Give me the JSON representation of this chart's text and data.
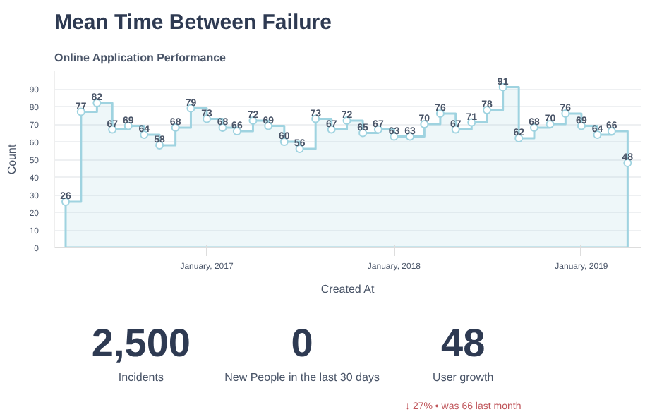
{
  "chart_data": [
    {
      "type": "area",
      "title": "Mean Time Between Failure",
      "subtitle": "Online Application Performance",
      "xlabel": "Created At",
      "ylabel": "Count",
      "x": [
        "2016-04",
        "2016-05",
        "2016-06",
        "2016-07",
        "2016-08",
        "2016-09",
        "2016-10",
        "2016-11",
        "2016-12",
        "2017-01",
        "2017-02",
        "2017-03",
        "2017-04",
        "2017-05",
        "2017-06",
        "2017-07",
        "2017-08",
        "2017-09",
        "2017-10",
        "2017-11",
        "2017-12",
        "2018-01",
        "2018-02",
        "2018-03",
        "2018-04",
        "2018-05",
        "2018-06",
        "2018-07",
        "2018-08",
        "2018-09",
        "2018-10",
        "2018-11",
        "2018-12",
        "2019-01",
        "2019-02",
        "2019-03",
        "2019-04"
      ],
      "series": [
        {
          "color": "#9fd3e0",
          "values": [
            26,
            77,
            82,
            67,
            69,
            64,
            58,
            68,
            79,
            73,
            68,
            66,
            72,
            69,
            60,
            56,
            73,
            67,
            72,
            65,
            67,
            63,
            63,
            70,
            76,
            67,
            71,
            78,
            91,
            62,
            68,
            70,
            76,
            69,
            64,
            66,
            48
          ]
        }
      ],
      "xlim": [
        "2016-03-10",
        "2019-04-28"
      ],
      "xticks": [
        {
          "value": "2017-01",
          "label": "January, 2017"
        },
        {
          "value": "2018-01",
          "label": "January, 2018"
        },
        {
          "value": "2019-01",
          "label": "January, 2019"
        }
      ],
      "ylim": [
        0,
        100
      ],
      "yticks": [
        0,
        10,
        20,
        30,
        40,
        50,
        60,
        70,
        80,
        90
      ],
      "grid": "y",
      "marker": "circle",
      "data_labels": true
    },
    {
      "type": "other",
      "annotations": [
        "2,500",
        "Incidents",
        "0",
        "New People in the last 30 days",
        "48",
        "User growth",
        "↓ 27% • was 66 last month"
      ]
    }
  ]
}
